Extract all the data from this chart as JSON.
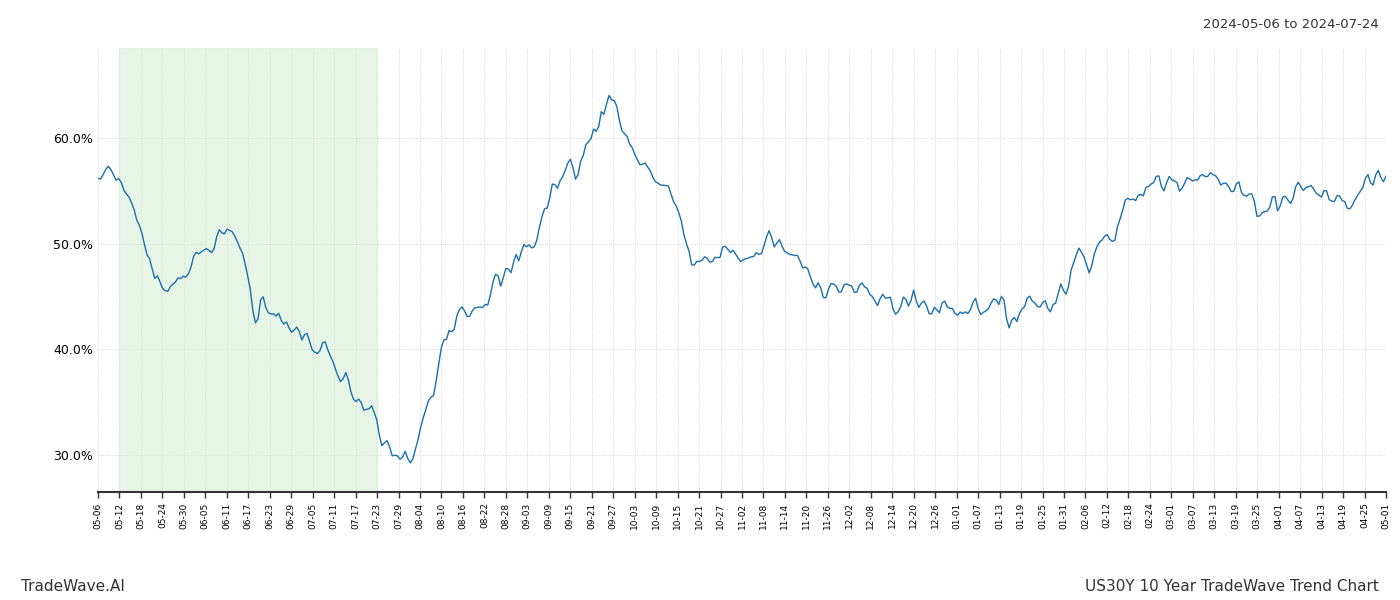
{
  "title_top_right": "2024-05-06 to 2024-07-24",
  "title_bottom_left": "TradeWave.AI",
  "title_bottom_right": "US30Y 10 Year TradeWave Trend Chart",
  "background_color": "#ffffff",
  "line_color": "#1a6fad",
  "shading_color": "#d4edd4",
  "shading_alpha": 0.55,
  "y_ticks": [
    0.3,
    0.4,
    0.5,
    0.6
  ],
  "ylim": [
    0.265,
    0.685
  ],
  "grid_color": "#cccccc",
  "x_labels": [
    "05-06",
    "05-12",
    "05-18",
    "05-24",
    "05-30",
    "06-05",
    "06-11",
    "06-17",
    "06-23",
    "06-29",
    "07-05",
    "07-11",
    "07-17",
    "07-23",
    "07-29",
    "08-04",
    "08-10",
    "08-16",
    "08-22",
    "08-28",
    "09-03",
    "09-09",
    "09-15",
    "09-21",
    "09-27",
    "10-03",
    "10-09",
    "10-15",
    "10-21",
    "10-27",
    "11-02",
    "11-08",
    "11-14",
    "11-20",
    "11-26",
    "12-02",
    "12-08",
    "12-14",
    "12-20",
    "12-26",
    "01-01",
    "01-07",
    "01-13",
    "01-19",
    "01-25",
    "01-31",
    "02-06",
    "02-12",
    "02-18",
    "02-24",
    "03-01",
    "03-07",
    "03-13",
    "03-19",
    "03-25",
    "04-01",
    "04-07",
    "04-13",
    "04-19",
    "04-25",
    "05-01"
  ],
  "shading_start_label": "05-12",
  "shading_end_label": "07-23",
  "n_points": 500,
  "key_points_x": [
    0,
    4,
    8,
    14,
    18,
    22,
    28,
    34,
    40,
    46,
    52,
    56,
    60,
    62,
    64,
    68,
    74,
    78,
    82,
    88,
    92,
    96,
    100,
    106,
    110,
    116,
    122,
    126,
    130,
    134,
    140,
    146,
    152,
    158,
    164,
    170,
    176,
    182,
    188,
    194,
    200,
    206,
    212,
    218,
    224,
    230,
    236,
    242,
    248,
    254,
    260,
    268,
    276,
    282,
    288,
    294,
    300,
    308,
    316,
    322,
    328,
    336,
    344,
    352,
    360,
    368,
    374,
    380,
    386,
    390,
    394,
    398,
    402,
    408,
    414,
    420,
    428,
    436,
    444,
    452,
    460,
    468,
    476,
    484,
    492,
    499
  ],
  "key_points_y": [
    0.555,
    0.575,
    0.56,
    0.535,
    0.5,
    0.465,
    0.46,
    0.475,
    0.49,
    0.505,
    0.51,
    0.495,
    0.44,
    0.43,
    0.45,
    0.44,
    0.41,
    0.42,
    0.405,
    0.395,
    0.38,
    0.365,
    0.355,
    0.34,
    0.31,
    0.3,
    0.295,
    0.33,
    0.36,
    0.42,
    0.44,
    0.445,
    0.455,
    0.465,
    0.49,
    0.51,
    0.55,
    0.57,
    0.58,
    0.62,
    0.64,
    0.59,
    0.575,
    0.555,
    0.54,
    0.48,
    0.48,
    0.495,
    0.49,
    0.485,
    0.505,
    0.49,
    0.47,
    0.46,
    0.46,
    0.455,
    0.45,
    0.445,
    0.445,
    0.44,
    0.44,
    0.44,
    0.445,
    0.43,
    0.445,
    0.445,
    0.455,
    0.49,
    0.495,
    0.505,
    0.51,
    0.53,
    0.545,
    0.555,
    0.56,
    0.565,
    0.57,
    0.555,
    0.545,
    0.535,
    0.545,
    0.555,
    0.545,
    0.535,
    0.56,
    0.565
  ]
}
